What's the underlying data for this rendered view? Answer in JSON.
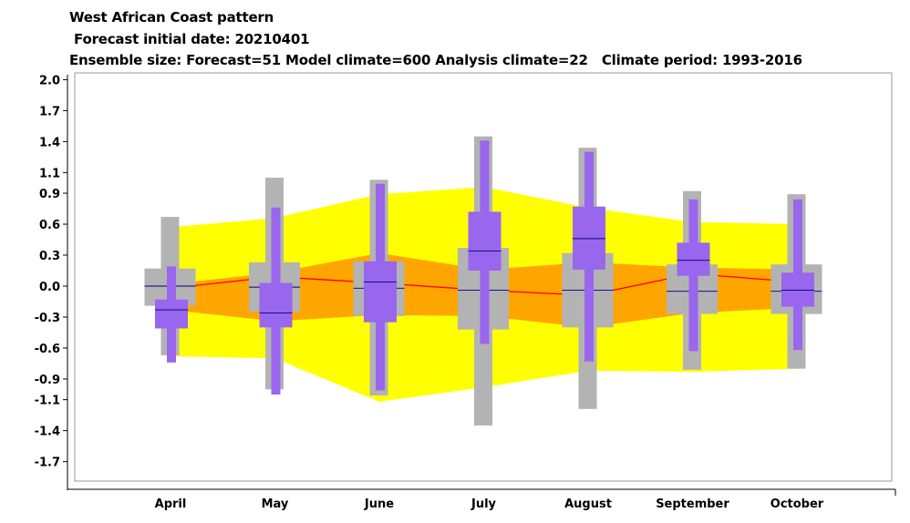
{
  "titles": {
    "line1": "West African Coast pattern",
    "line2": " Forecast initial date: 20210401",
    "line3": "Ensemble size: Forecast=51 Model climate=600 Analysis climate=22   Climate period: 1993-2016"
  },
  "colors": {
    "yellow_band": "#ffff00",
    "orange_band": "#ffa500",
    "climate_median_line": "#ff0000",
    "model_climate_box": "#b3b3b3",
    "forecast_box": "#9966ee",
    "median_tick": "#000080",
    "plot_border": "#999999"
  },
  "chart_data": {
    "type": "box",
    "title": "West African Coast pattern",
    "categories": [
      "April",
      "May",
      "June",
      "July",
      "August",
      "September",
      "October"
    ],
    "yticks": [
      2.0,
      1.7,
      1.4,
      1.1,
      0.9,
      0.6,
      0.3,
      0.0,
      -0.3,
      -0.6,
      -0.9,
      -1.1,
      -1.4,
      -1.7
    ],
    "ytick_labels": [
      "2.0",
      "1.7",
      "1.4",
      "1.1",
      "0.9",
      "0.6",
      "0.3",
      "0.0",
      "-0.3",
      "-0.6",
      "-0.9",
      "-1.1",
      "-1.4",
      "-1.7"
    ],
    "ylim": [
      -2.0,
      2.1
    ],
    "analysis_climate": {
      "outer_upper": [
        0.57,
        0.66,
        0.89,
        0.96,
        0.76,
        0.62,
        0.6
      ],
      "outer_lower": [
        -0.68,
        -0.7,
        -1.12,
        -0.98,
        -0.82,
        -0.83,
        -0.8
      ],
      "inner_upper": [
        0.02,
        0.13,
        0.32,
        0.16,
        0.23,
        0.18,
        0.16
      ],
      "inner_lower": [
        -0.23,
        -0.34,
        -0.28,
        -0.29,
        -0.4,
        -0.26,
        -0.21
      ],
      "median": [
        -0.02,
        0.09,
        0.03,
        -0.04,
        -0.09,
        0.12,
        0.04
      ]
    },
    "model_climate": {
      "min": [
        -0.67,
        -1.0,
        -1.06,
        -1.35,
        -1.19,
        -0.81,
        -0.8
      ],
      "p10": [
        -0.19,
        -0.25,
        -0.29,
        -0.42,
        -0.4,
        -0.27,
        -0.27
      ],
      "median": [
        0.0,
        -0.01,
        -0.02,
        -0.04,
        -0.04,
        -0.05,
        -0.05
      ],
      "p90": [
        0.17,
        0.23,
        0.24,
        0.37,
        0.32,
        0.21,
        0.21
      ],
      "max": [
        0.67,
        1.05,
        1.03,
        1.45,
        1.34,
        0.92,
        0.89
      ]
    },
    "forecast": {
      "min": [
        -0.74,
        -1.05,
        -1.01,
        -0.56,
        -0.73,
        -0.63,
        -0.62
      ],
      "p10": [
        -0.41,
        -0.4,
        -0.35,
        0.15,
        0.16,
        0.1,
        -0.2
      ],
      "median": [
        -0.23,
        -0.26,
        0.04,
        0.34,
        0.46,
        0.25,
        -0.04
      ],
      "p90": [
        -0.13,
        0.03,
        0.24,
        0.72,
        0.77,
        0.42,
        0.13
      ],
      "max": [
        0.19,
        0.76,
        0.99,
        1.41,
        1.3,
        0.84,
        0.84
      ]
    },
    "grid": false,
    "legend": "none"
  }
}
